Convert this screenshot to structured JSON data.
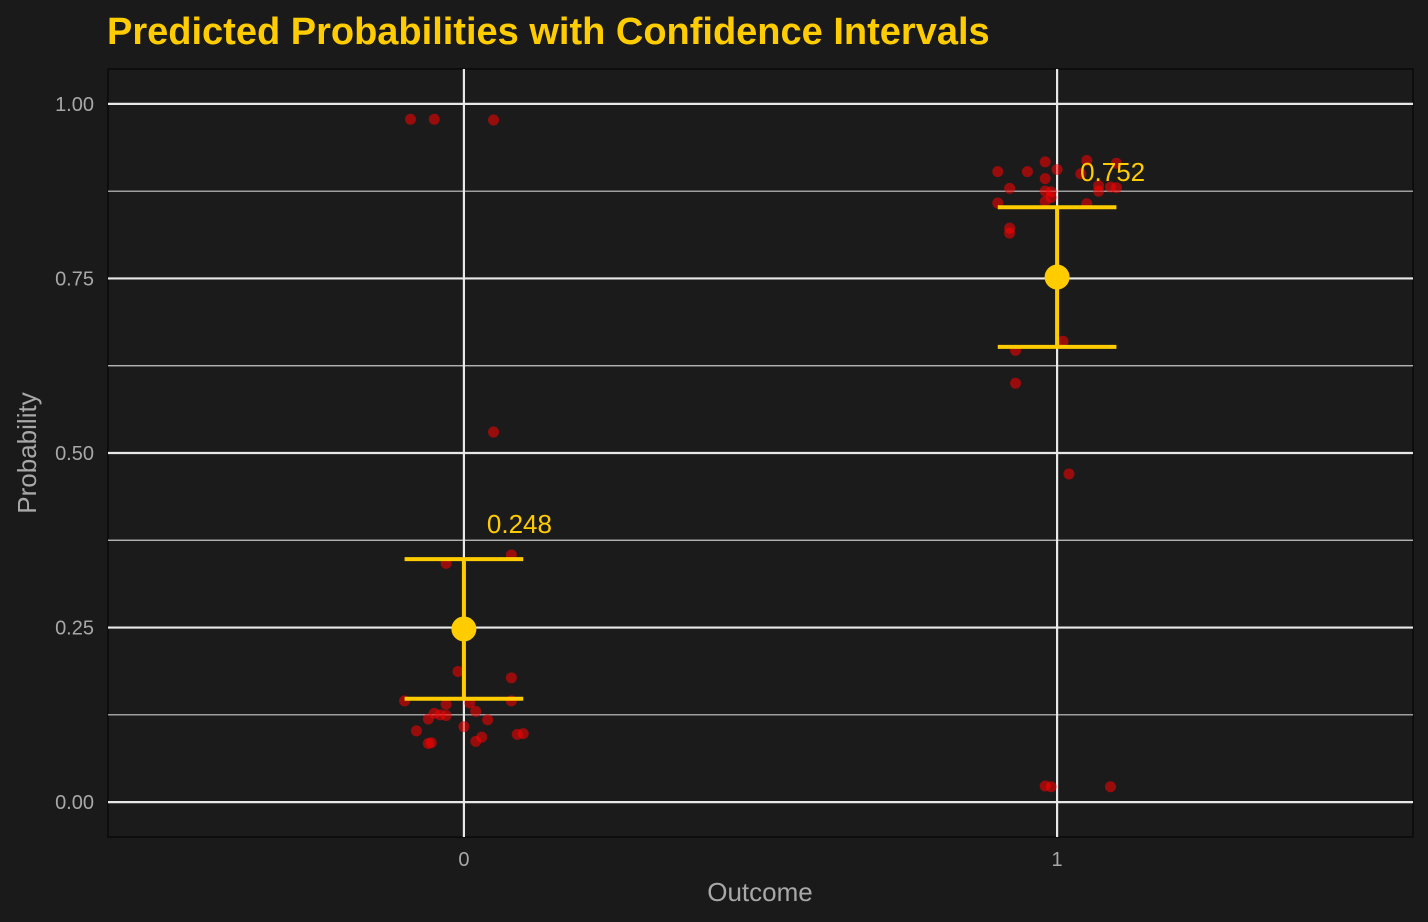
{
  "colors": {
    "background": "#1a1a1a",
    "panel": "#1c1b1c",
    "grid": "#e8e8e8",
    "accent": "#ffcc00",
    "points": "#ff0000",
    "text": "#a8a8a8"
  },
  "chart_data": {
    "type": "scatter",
    "title": "Predicted Probabilities with Confidence Intervals",
    "xlabel": "Outcome",
    "ylabel": "Probability",
    "categories": [
      "0",
      "1"
    ],
    "xlim": [
      -0.6,
      1.6
    ],
    "ylim": [
      -0.05,
      1.05
    ],
    "y_ticks": [
      0.0,
      0.25,
      0.5,
      0.75,
      1.0
    ],
    "y_tick_labels": [
      "0.00",
      "0.25",
      "0.50",
      "0.75",
      "1.00"
    ],
    "grid": true,
    "summary": [
      {
        "category": "0",
        "x": 0,
        "mean": 0.248,
        "ci_low": 0.148,
        "ci_high": 0.348,
        "label": "0.248"
      },
      {
        "category": "1",
        "x": 1,
        "mean": 0.752,
        "ci_low": 0.652,
        "ci_high": 0.852,
        "label": "0.752"
      }
    ],
    "points": [
      {
        "x": -0.09,
        "y": 0.978
      },
      {
        "x": -0.05,
        "y": 0.978
      },
      {
        "x": 0.05,
        "y": 0.977
      },
      {
        "x": 0.05,
        "y": 0.53
      },
      {
        "x": 0.08,
        "y": 0.354
      },
      {
        "x": -0.03,
        "y": 0.342
      },
      {
        "x": -0.01,
        "y": 0.187
      },
      {
        "x": 0.08,
        "y": 0.178
      },
      {
        "x": -0.1,
        "y": 0.145
      },
      {
        "x": 0.08,
        "y": 0.145
      },
      {
        "x": -0.03,
        "y": 0.14
      },
      {
        "x": 0.01,
        "y": 0.142
      },
      {
        "x": 0.02,
        "y": 0.13
      },
      {
        "x": -0.05,
        "y": 0.127
      },
      {
        "x": -0.04,
        "y": 0.125
      },
      {
        "x": -0.03,
        "y": 0.124
      },
      {
        "x": -0.06,
        "y": 0.119
      },
      {
        "x": 0.04,
        "y": 0.118
      },
      {
        "x": 0.0,
        "y": 0.108
      },
      {
        "x": -0.08,
        "y": 0.102
      },
      {
        "x": 0.09,
        "y": 0.097
      },
      {
        "x": 0.1,
        "y": 0.098
      },
      {
        "x": 0.03,
        "y": 0.093
      },
      {
        "x": 0.02,
        "y": 0.087
      },
      {
        "x": -0.06,
        "y": 0.084
      },
      {
        "x": -0.055,
        "y": 0.085
      },
      {
        "x": 0.98,
        "y": 0.917
      },
      {
        "x": 1.05,
        "y": 0.919
      },
      {
        "x": 1.1,
        "y": 0.915
      },
      {
        "x": 1.0,
        "y": 0.906
      },
      {
        "x": 0.95,
        "y": 0.903
      },
      {
        "x": 0.9,
        "y": 0.903
      },
      {
        "x": 1.04,
        "y": 0.9
      },
      {
        "x": 0.98,
        "y": 0.893
      },
      {
        "x": 1.07,
        "y": 0.883
      },
      {
        "x": 1.09,
        "y": 0.881
      },
      {
        "x": 0.92,
        "y": 0.879
      },
      {
        "x": 1.1,
        "y": 0.88
      },
      {
        "x": 0.98,
        "y": 0.875
      },
      {
        "x": 0.99,
        "y": 0.874
      },
      {
        "x": 1.07,
        "y": 0.875
      },
      {
        "x": 0.99,
        "y": 0.866
      },
      {
        "x": 0.98,
        "y": 0.86
      },
      {
        "x": 0.9,
        "y": 0.858
      },
      {
        "x": 1.05,
        "y": 0.857
      },
      {
        "x": 0.92,
        "y": 0.822
      },
      {
        "x": 0.92,
        "y": 0.815
      },
      {
        "x": 1.01,
        "y": 0.66
      },
      {
        "x": 0.93,
        "y": 0.647
      },
      {
        "x": 0.93,
        "y": 0.6
      },
      {
        "x": 1.02,
        "y": 0.47
      },
      {
        "x": 0.98,
        "y": 0.023
      },
      {
        "x": 0.99,
        "y": 0.022
      },
      {
        "x": 1.09,
        "y": 0.022
      }
    ]
  }
}
